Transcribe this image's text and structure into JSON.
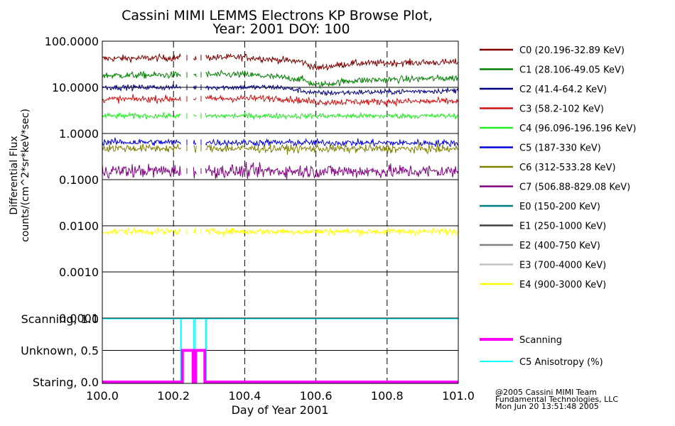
{
  "title": {
    "line1": "Cassini MIMI LEMMS Electrons KP Browse Plot,",
    "line2": "Year: 2001 DOY: 100"
  },
  "credits": {
    "line1": "@2005 Cassini MIMI Team",
    "line2": "Fundamental Technologies, LLC",
    "line3": "Mon Jun 20 13:51:48 2005"
  },
  "chart_data": [
    {
      "type": "line",
      "title": "Cassini MIMI LEMMS Electrons KP Browse Plot, Year: 2001 DOY: 100",
      "xlabel": "Day of Year 2001",
      "ylabel_line1": "Differential Flux",
      "ylabel_line2": "counts/(cm^2*sr*keV*sec)",
      "yscale": "log",
      "xlim": [
        100.0,
        101.0
      ],
      "ylim": [
        0.0001,
        100
      ],
      "grid": "dashed vertical at 0.2 intervals, solid horizontal at decades",
      "x_ticks": [
        {
          "v": 100.0,
          "label": "100.0"
        },
        {
          "v": 100.2,
          "label": "100.2"
        },
        {
          "v": 100.4,
          "label": "100.4"
        },
        {
          "v": 100.6,
          "label": "100.6"
        },
        {
          "v": 100.8,
          "label": "100.8"
        },
        {
          "v": 101.0,
          "label": "101.0"
        }
      ],
      "y_ticks": [
        {
          "v": 100,
          "label": "100.0000"
        },
        {
          "v": 10,
          "label": "10.0000"
        },
        {
          "v": 1,
          "label": "1.0000"
        },
        {
          "v": 0.1,
          "label": "0.1000"
        },
        {
          "v": 0.01,
          "label": "0.0100"
        },
        {
          "v": 0.001,
          "label": "0.0010"
        },
        {
          "v": 0.0001,
          "label": "0.0001"
        }
      ],
      "data_gaps": [
        [
          100.22,
          100.255
        ],
        [
          100.265,
          100.29
        ]
      ],
      "series": [
        {
          "name": "C0",
          "label": "C0 (20.196-32.89 KeV)",
          "color": "#800000",
          "level": 42,
          "noise": 0.05,
          "trend": [
            [
              100.0,
              42
            ],
            [
              100.4,
              45
            ],
            [
              100.56,
              36
            ],
            [
              100.6,
              26
            ],
            [
              100.7,
              33
            ],
            [
              101.0,
              35
            ]
          ]
        },
        {
          "name": "C1",
          "label": "C1 (28.106-49.05 KeV)",
          "color": "#008000",
          "level": 18,
          "noise": 0.05,
          "trend": [
            [
              100.0,
              18
            ],
            [
              100.4,
              19
            ],
            [
              100.56,
              15
            ],
            [
              100.6,
              11
            ],
            [
              100.7,
              14
            ],
            [
              101.0,
              16
            ]
          ]
        },
        {
          "name": "C2",
          "label": "C2 (41.4-64.2 KeV)",
          "color": "#000080",
          "level": 10,
          "noise": 0.04,
          "trend": [
            [
              100.0,
              10
            ],
            [
              100.5,
              10
            ],
            [
              100.6,
              7.5
            ],
            [
              101.0,
              8.5
            ]
          ]
        },
        {
          "name": "C3",
          "label": "C3 (58.2-102 KeV)",
          "color": "#d01010",
          "level": 5.5,
          "noise": 0.05,
          "trend": [
            [
              100.0,
              5.5
            ],
            [
              100.5,
              5.8
            ],
            [
              100.6,
              4.8
            ],
            [
              101.0,
              5.0
            ]
          ]
        },
        {
          "name": "C4",
          "label": "C4 (96.096-196.196 KeV)",
          "color": "#22ee22",
          "level": 2.4,
          "noise": 0.04,
          "trend": [
            [
              100.0,
              2.4
            ],
            [
              101.0,
              2.4
            ]
          ]
        },
        {
          "name": "C5",
          "label": "C5 (187-330 KeV)",
          "color": "#0000e0",
          "level": 0.65,
          "noise": 0.05,
          "trend": [
            [
              100.0,
              0.65
            ],
            [
              101.0,
              0.62
            ]
          ]
        },
        {
          "name": "C6",
          "label": "C6 (312-533.28 KeV)",
          "color": "#808000",
          "level": 0.48,
          "noise": 0.06,
          "trend": [
            [
              100.0,
              0.48
            ],
            [
              101.0,
              0.46
            ]
          ]
        },
        {
          "name": "C7",
          "label": "C7 (506.88-829.08 KeV)",
          "color": "#800080",
          "level": 0.155,
          "noise": 0.1,
          "trend": [
            [
              100.0,
              0.155
            ],
            [
              101.0,
              0.15
            ]
          ]
        },
        {
          "name": "E0",
          "label": "E0 (150-200 KeV)",
          "color": "#008080",
          "level": null
        },
        {
          "name": "E1",
          "label": "E1 (250-1000 KeV)",
          "color": "#404040",
          "level": null
        },
        {
          "name": "E2",
          "label": "E2 (400-750 KeV)",
          "color": "#808080",
          "level": null
        },
        {
          "name": "E3",
          "label": "E3 (700-4000 KeV)",
          "color": "#c0c0c0",
          "level": null
        },
        {
          "name": "E4",
          "label": "E4 (900-3000 KeV)",
          "color": "#ffff00",
          "level": 0.0075,
          "noise": 0.05,
          "trend": [
            [
              100.0,
              0.0075
            ],
            [
              101.0,
              0.0075
            ]
          ]
        }
      ]
    },
    {
      "type": "line",
      "xlim": [
        100.0,
        101.0
      ],
      "ylim": [
        0.0,
        1.0
      ],
      "y_ticks": [
        {
          "v": 1.0,
          "label": "Scanning, 1.0"
        },
        {
          "v": 0.5,
          "label": "Unknown, 0.5"
        },
        {
          "v": 0.0,
          "label": "Staring, 0.0"
        }
      ],
      "series": [
        {
          "name": "Scanning",
          "label": "Scanning",
          "color": "#ff00ff",
          "points": [
            [
              100.0,
              0
            ],
            [
              100.225,
              0
            ],
            [
              100.225,
              0.5
            ],
            [
              100.255,
              0.5
            ],
            [
              100.255,
              0
            ],
            [
              100.262,
              0
            ],
            [
              100.262,
              0.5
            ],
            [
              100.288,
              0.5
            ],
            [
              100.288,
              0
            ],
            [
              101.0,
              0
            ]
          ]
        },
        {
          "name": "C5 Anisotropy",
          "label": "C5 Anisotropy (%)",
          "color": "#00ffff",
          "points": [
            [
              100.0,
              1.0
            ],
            [
              100.22,
              1.0
            ],
            [
              100.22,
              0
            ],
            [
              100.222,
              0
            ],
            [
              100.222,
              1.0
            ],
            [
              100.256,
              1.0
            ],
            [
              100.256,
              0
            ],
            [
              100.26,
              0
            ],
            [
              100.26,
              1.0
            ],
            [
              100.29,
              1.0
            ],
            [
              100.29,
              0
            ],
            [
              100.292,
              0
            ],
            [
              100.292,
              1.0
            ],
            [
              101.0,
              1.0
            ]
          ]
        }
      ]
    }
  ]
}
